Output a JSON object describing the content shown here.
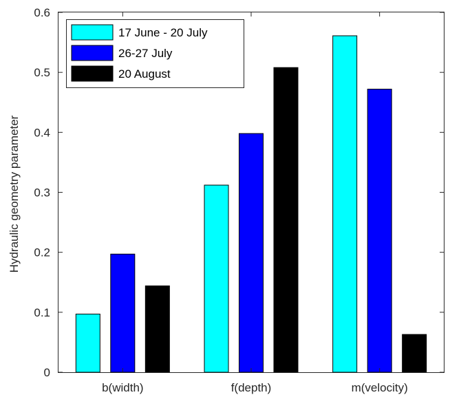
{
  "chart_data": {
    "type": "bar",
    "categories": [
      "b(width)",
      "f(depth)",
      "m(velocity)"
    ],
    "series": [
      {
        "name": "17 June - 20 July",
        "color": "#00FFFF",
        "values": [
          0.097,
          0.312,
          0.561
        ]
      },
      {
        "name": "26-27 July",
        "color": "#0000FF",
        "values": [
          0.197,
          0.398,
          0.472
        ]
      },
      {
        "name": "20 August",
        "color": "#000000",
        "values": [
          0.144,
          0.508,
          0.063
        ]
      }
    ],
    "title": "",
    "xlabel": "",
    "ylabel": "Hydraulic geometry parameter",
    "ylim": [
      0,
      0.6
    ],
    "yticks": [
      0,
      0.1,
      0.2,
      0.3,
      0.4,
      0.5,
      0.6
    ],
    "ytick_labels": [
      "0",
      "0.1",
      "0.2",
      "0.3",
      "0.4",
      "0.5",
      "0.6"
    ],
    "grid": false,
    "legend_position": "top-left"
  }
}
